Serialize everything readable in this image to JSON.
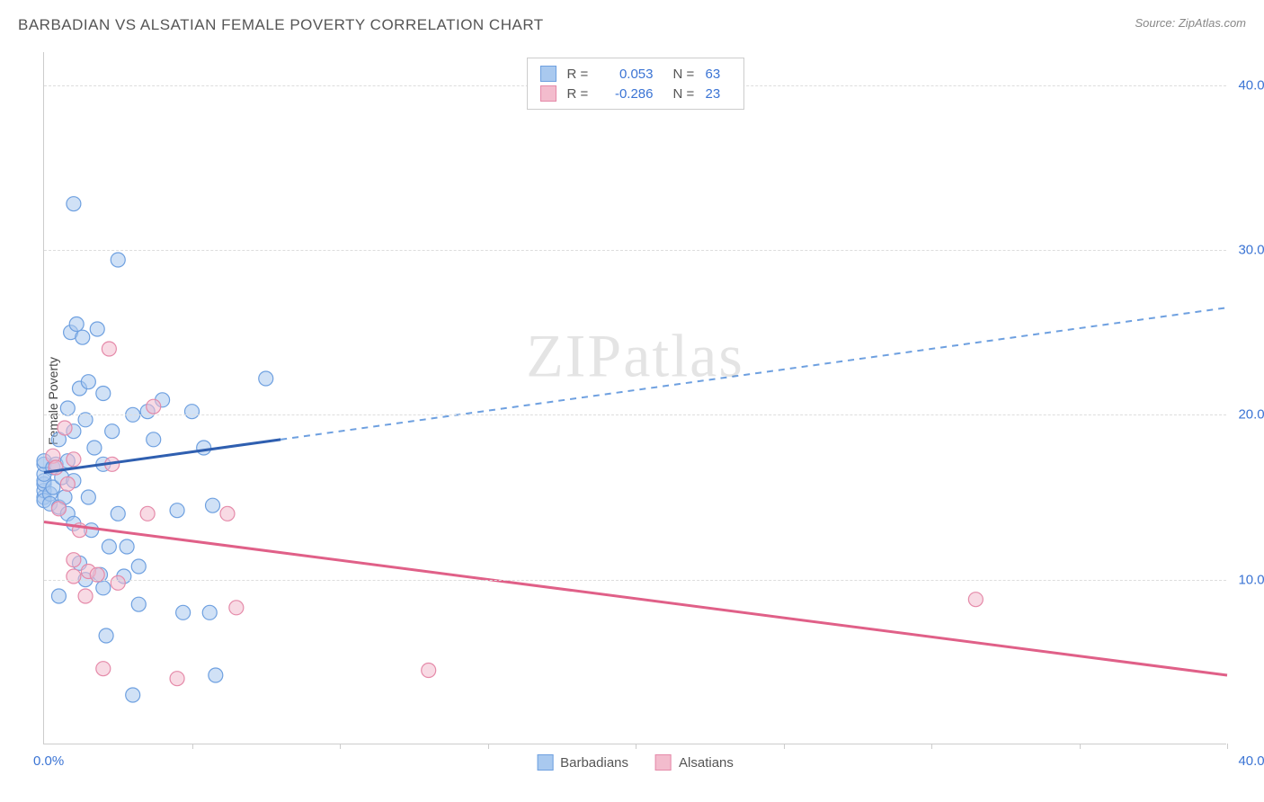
{
  "header": {
    "title": "BARBADIAN VS ALSATIAN FEMALE POVERTY CORRELATION CHART",
    "source": "Source: ZipAtlas.com"
  },
  "watermark_zip": "ZIP",
  "watermark_atlas": "atlas",
  "chart": {
    "type": "scatter",
    "ylabel": "Female Poverty",
    "background_color": "#ffffff",
    "grid_color": "#dddddd",
    "axis_color": "#cccccc",
    "tick_label_color": "#3b74d4",
    "label_fontsize": 14,
    "tick_fontsize": 15,
    "xlim": [
      0,
      40
    ],
    "ylim": [
      0,
      42
    ],
    "x_ticks": [
      0,
      5,
      10,
      15,
      20,
      25,
      30,
      35,
      40
    ],
    "y_ticks": [
      10,
      20,
      30,
      40
    ],
    "x_tick_labels": {
      "min": "0.0%",
      "max": "40.0%"
    },
    "y_tick_labels": [
      "10.0%",
      "20.0%",
      "30.0%",
      "40.0%"
    ],
    "marker_radius": 8,
    "marker_opacity": 0.55,
    "series": [
      {
        "name": "Barbadians",
        "fill_color": "#a9c9ef",
        "stroke_color": "#6ea0e0",
        "line_color": "#2f5fb0",
        "dash_color": "#6ea0e0",
        "line_width": 3,
        "R_label": "R =",
        "R_value": "0.053",
        "N_label": "N =",
        "N_value": "63",
        "trend": {
          "x1": 0,
          "y1": 16.5,
          "solid_x2": 8,
          "solid_y2": 18.5,
          "dash_x2": 40,
          "dash_y2": 26.5
        },
        "points": [
          [
            0.0,
            15.0
          ],
          [
            0.0,
            15.4
          ],
          [
            0.0,
            15.8
          ],
          [
            0.0,
            16.0
          ],
          [
            0.0,
            16.4
          ],
          [
            0.0,
            17.0
          ],
          [
            0.0,
            17.2
          ],
          [
            0.0,
            14.8
          ],
          [
            0.2,
            15.2
          ],
          [
            0.2,
            14.6
          ],
          [
            0.3,
            16.8
          ],
          [
            0.3,
            15.6
          ],
          [
            0.4,
            17.0
          ],
          [
            0.5,
            14.4
          ],
          [
            0.5,
            18.5
          ],
          [
            0.6,
            16.2
          ],
          [
            0.7,
            15.0
          ],
          [
            0.8,
            20.4
          ],
          [
            0.8,
            17.2
          ],
          [
            0.8,
            14.0
          ],
          [
            0.9,
            25.0
          ],
          [
            1.0,
            19.0
          ],
          [
            1.0,
            13.4
          ],
          [
            1.0,
            16.0
          ],
          [
            1.1,
            25.5
          ],
          [
            1.2,
            21.6
          ],
          [
            1.2,
            11.0
          ],
          [
            1.3,
            24.7
          ],
          [
            1.4,
            10.0
          ],
          [
            1.4,
            19.7
          ],
          [
            1.5,
            22.0
          ],
          [
            1.5,
            15.0
          ],
          [
            1.6,
            13.0
          ],
          [
            1.7,
            18.0
          ],
          [
            1.8,
            25.2
          ],
          [
            1.9,
            10.3
          ],
          [
            2.0,
            21.3
          ],
          [
            2.0,
            9.5
          ],
          [
            2.0,
            17.0
          ],
          [
            2.1,
            6.6
          ],
          [
            2.2,
            12.0
          ],
          [
            2.3,
            19.0
          ],
          [
            2.5,
            29.4
          ],
          [
            2.5,
            14.0
          ],
          [
            2.7,
            10.2
          ],
          [
            2.8,
            12.0
          ],
          [
            3.0,
            20.0
          ],
          [
            3.0,
            3.0
          ],
          [
            3.2,
            10.8
          ],
          [
            3.2,
            8.5
          ],
          [
            3.5,
            20.2
          ],
          [
            3.7,
            18.5
          ],
          [
            4.0,
            20.9
          ],
          [
            4.5,
            14.2
          ],
          [
            4.7,
            8.0
          ],
          [
            5.0,
            20.2
          ],
          [
            5.4,
            18.0
          ],
          [
            5.6,
            8.0
          ],
          [
            5.7,
            14.5
          ],
          [
            5.8,
            4.2
          ],
          [
            7.5,
            22.2
          ],
          [
            1.0,
            32.8
          ],
          [
            0.5,
            9.0
          ]
        ]
      },
      {
        "name": "Alsatians",
        "fill_color": "#f3bccd",
        "stroke_color": "#e58aa9",
        "line_color": "#e06088",
        "line_width": 3,
        "R_label": "R =",
        "R_value": "-0.286",
        "N_label": "N =",
        "N_value": "23",
        "trend": {
          "x1": 0,
          "y1": 13.5,
          "x2": 40,
          "y2": 4.2
        },
        "points": [
          [
            0.3,
            17.5
          ],
          [
            0.4,
            16.8
          ],
          [
            0.5,
            14.3
          ],
          [
            0.7,
            19.2
          ],
          [
            0.8,
            15.8
          ],
          [
            1.0,
            11.2
          ],
          [
            1.0,
            17.3
          ],
          [
            1.0,
            10.2
          ],
          [
            1.2,
            13.0
          ],
          [
            1.4,
            9.0
          ],
          [
            1.5,
            10.5
          ],
          [
            1.8,
            10.3
          ],
          [
            2.0,
            4.6
          ],
          [
            2.2,
            24.0
          ],
          [
            2.3,
            17.0
          ],
          [
            2.5,
            9.8
          ],
          [
            3.5,
            14.0
          ],
          [
            3.7,
            20.5
          ],
          [
            4.5,
            4.0
          ],
          [
            6.2,
            14.0
          ],
          [
            6.5,
            8.3
          ],
          [
            13.0,
            4.5
          ],
          [
            31.5,
            8.8
          ]
        ]
      }
    ],
    "legend_bottom": [
      {
        "swatch_fill": "#a9c9ef",
        "swatch_stroke": "#6ea0e0",
        "label": "Barbadians"
      },
      {
        "swatch_fill": "#f3bccd",
        "swatch_stroke": "#e58aa9",
        "label": "Alsatians"
      }
    ]
  }
}
